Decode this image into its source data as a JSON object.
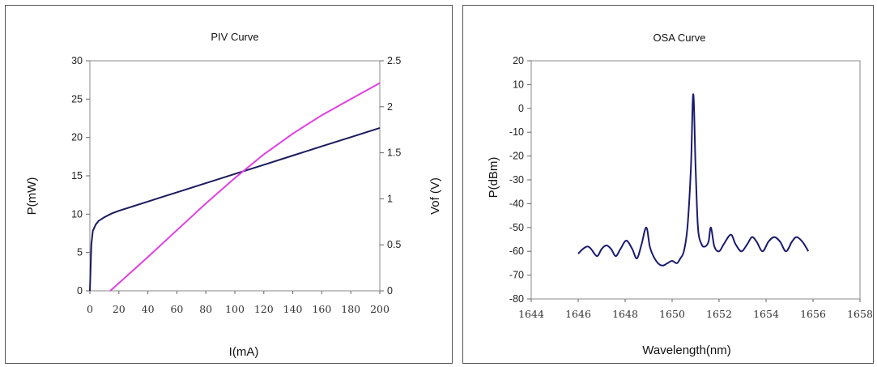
{
  "chart_data": [
    {
      "type": "line",
      "title": "PIV Curve",
      "xlabel": "I(mA)",
      "ylabel": "P(mW)",
      "y2label": "Vof (V)",
      "xlim": [
        0,
        200
      ],
      "ylim": [
        0,
        30
      ],
      "y2lim": [
        0,
        2.5
      ],
      "xticks": [
        0,
        20,
        40,
        60,
        80,
        100,
        120,
        140,
        160,
        180,
        200
      ],
      "yticks": [
        0,
        5,
        10,
        15,
        20,
        25,
        30
      ],
      "y2ticks": [
        0,
        0.5,
        1,
        1.5,
        2,
        2.5
      ],
      "y2tick_labels": [
        "0",
        "0.5",
        "1",
        "1.5",
        "2",
        "2.5"
      ],
      "grid": false,
      "series": [
        {
          "axis": "right",
          "color": "#1a1a5e",
          "x": [
            0,
            1,
            2,
            4,
            6,
            10,
            15,
            20,
            30,
            40,
            50,
            60,
            80,
            100,
            120,
            140,
            160,
            180,
            200
          ],
          "y": [
            0,
            0.5,
            0.65,
            0.72,
            0.76,
            0.8,
            0.84,
            0.87,
            0.92,
            0.97,
            1.02,
            1.07,
            1.17,
            1.27,
            1.37,
            1.47,
            1.57,
            1.67,
            1.77
          ]
        },
        {
          "axis": "left",
          "color": "#e040e0",
          "x": [
            14,
            20,
            40,
            60,
            80,
            100,
            120,
            140,
            160,
            180,
            200
          ],
          "y": [
            0,
            1.0,
            4.4,
            7.9,
            11.4,
            14.7,
            17.8,
            20.5,
            22.9,
            25.0,
            27.1
          ]
        }
      ]
    },
    {
      "type": "line",
      "title": "OSA Curve",
      "xlabel": "Wavelength(nm)",
      "ylabel": "P(dBm)",
      "xlim": [
        1644,
        1658
      ],
      "ylim": [
        -80,
        20
      ],
      "xticks": [
        1644,
        1646,
        1648,
        1650,
        1652,
        1654,
        1656,
        1658
      ],
      "yticks": [
        -80,
        -70,
        -60,
        -50,
        -40,
        -30,
        -20,
        -10,
        0,
        10,
        20
      ],
      "grid": false,
      "series": [
        {
          "color": "#1a1a6e",
          "x": [
            1646.0,
            1646.2,
            1646.4,
            1646.55,
            1646.8,
            1647.0,
            1647.2,
            1647.4,
            1647.6,
            1647.8,
            1648.05,
            1648.3,
            1648.5,
            1648.7,
            1648.9,
            1649.05,
            1649.2,
            1649.4,
            1649.6,
            1649.8,
            1650.0,
            1650.2,
            1650.35,
            1650.5,
            1650.65,
            1650.8,
            1650.9,
            1651.0,
            1651.1,
            1651.25,
            1651.4,
            1651.55,
            1651.65,
            1651.8,
            1652.0,
            1652.2,
            1652.5,
            1652.7,
            1652.95,
            1653.2,
            1653.4,
            1653.6,
            1653.85,
            1654.1,
            1654.35,
            1654.6,
            1654.85,
            1655.1,
            1655.3,
            1655.55,
            1655.8
          ],
          "y": [
            -61,
            -59,
            -58,
            -59,
            -62,
            -59,
            -57.5,
            -59,
            -62,
            -59,
            -55.5,
            -59,
            -63,
            -57,
            -50,
            -58,
            -62,
            -65,
            -66,
            -65,
            -64,
            -65,
            -63,
            -60,
            -50,
            -25,
            6,
            -25,
            -50,
            -57,
            -58,
            -56,
            -50,
            -58,
            -60,
            -57,
            -53,
            -57,
            -60,
            -57,
            -54,
            -56,
            -60,
            -56,
            -54,
            -56,
            -60,
            -56,
            -54,
            -56,
            -60
          ]
        }
      ]
    }
  ]
}
